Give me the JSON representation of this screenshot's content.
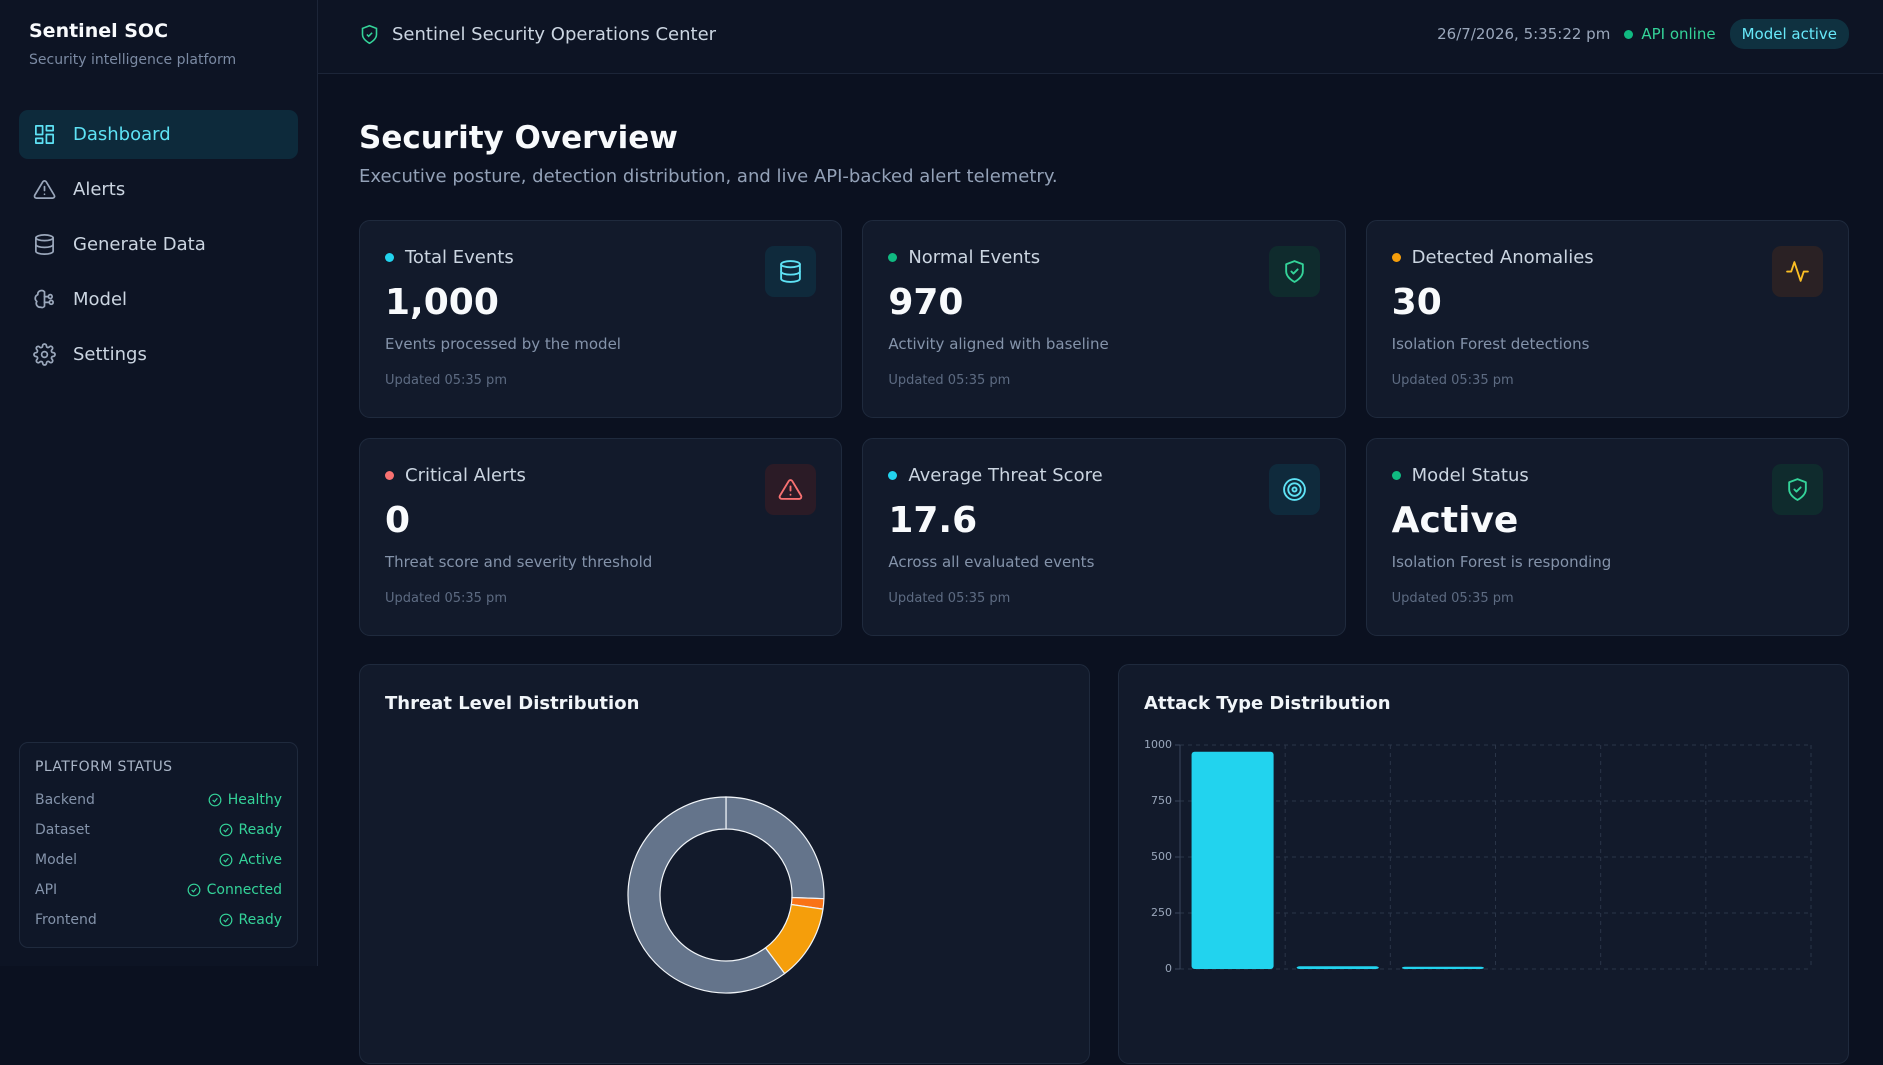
{
  "sidebar": {
    "brand": "Sentinel SOC",
    "tagline": "Security intelligence platform",
    "nav": [
      "Dashboard",
      "Alerts",
      "Generate Data",
      "Model",
      "Settings"
    ],
    "platform_status": {
      "title": "PLATFORM STATUS",
      "rows": [
        {
          "name": "Backend",
          "status": "Healthy"
        },
        {
          "name": "Dataset",
          "status": "Ready"
        },
        {
          "name": "Model",
          "status": "Active"
        },
        {
          "name": "API",
          "status": "Connected"
        },
        {
          "name": "Frontend",
          "status": "Ready"
        }
      ]
    }
  },
  "header": {
    "title": "Sentinel Security Operations Center",
    "timestamp": "26/7/2026, 5:35:22 pm",
    "api_status": "API online",
    "model_status": "Model active"
  },
  "page": {
    "title": "Security Overview",
    "subtitle": "Executive posture, detection distribution, and live API-backed alert telemetry."
  },
  "cards": [
    {
      "label": "Total Events",
      "value": "1,000",
      "description": "Events processed by the model",
      "updated": "Updated 05:35 pm"
    },
    {
      "label": "Normal Events",
      "value": "970",
      "description": "Activity aligned with baseline",
      "updated": "Updated 05:35 pm"
    },
    {
      "label": "Detected Anomalies",
      "value": "30",
      "description": "Isolation Forest detections",
      "updated": "Updated 05:35 pm"
    },
    {
      "label": "Critical Alerts",
      "value": "0",
      "description": "Threat score and severity threshold",
      "updated": "Updated 05:35 pm"
    },
    {
      "label": "Average Threat Score",
      "value": "17.6",
      "description": "Across all evaluated events",
      "updated": "Updated 05:35 pm"
    },
    {
      "label": "Model Status",
      "value": "Active",
      "description": "Isolation Forest is responding",
      "updated": "Updated 05:35 pm"
    }
  ],
  "chart_data": [
    {
      "type": "pie",
      "title": "Threat Level Distribution",
      "categories": [
        null,
        null,
        null,
        null
      ],
      "values": [
        25.6,
        1.7,
        12.5,
        60.2
      ],
      "colors": [
        "#64748b",
        "#f97316",
        "#f59e0b",
        "#64748b"
      ]
    },
    {
      "type": "bar",
      "title": "Attack Type Distribution",
      "categories": [
        null,
        null,
        null,
        null,
        null,
        null
      ],
      "values": [
        970,
        12,
        10,
        0,
        0,
        0
      ],
      "color": "#22d3ee",
      "ylim": [
        0,
        1000
      ],
      "yticks": [
        0,
        250,
        500,
        750,
        1000
      ],
      "grid": true
    }
  ]
}
